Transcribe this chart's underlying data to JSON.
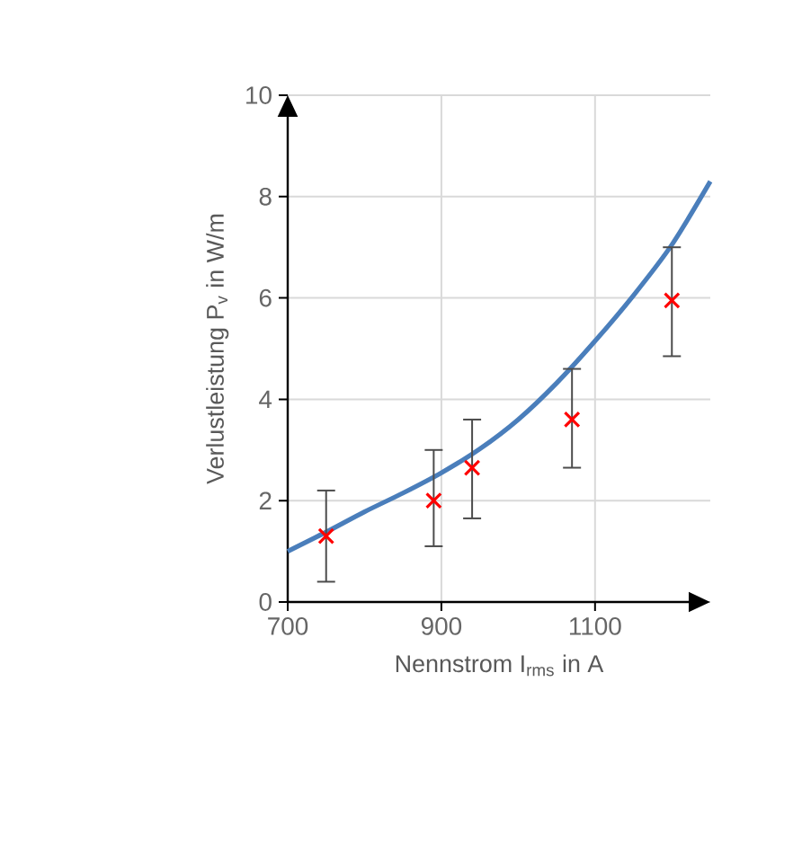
{
  "chart_data": {
    "type": "scatter",
    "xlabel": "Nennstrom I$_{rms}$ in A",
    "ylabel": "Verlustleistung P$_{v}$ in W/m",
    "xlim": [
      700,
      1250
    ],
    "ylim": [
      0,
      10
    ],
    "xticks": [
      700,
      900,
      1100
    ],
    "yticks": [
      0,
      2,
      4,
      6,
      8,
      10
    ],
    "grid": true,
    "series": [
      {
        "type": "line",
        "marker": "none",
        "color": "#4a7ebb",
        "x": [
          700,
          750,
          800,
          850,
          900,
          950,
          1000,
          1050,
          1100,
          1150,
          1200,
          1250
        ],
        "values": [
          1.0,
          1.38,
          1.78,
          2.15,
          2.55,
          3.02,
          3.6,
          4.32,
          5.15,
          6.05,
          7.05,
          8.3
        ]
      },
      {
        "marker": "cross",
        "color": "#ff0000",
        "x": [
          750,
          890,
          940,
          1070,
          1200
        ],
        "values": [
          1.3,
          2.0,
          2.65,
          3.6,
          5.95
        ],
        "errors": [
          [
            0.4,
            2.2
          ],
          [
            1.1,
            3.0
          ],
          [
            1.65,
            3.6
          ],
          [
            2.65,
            4.6
          ],
          [
            4.85,
            7.0
          ]
        ]
      }
    ]
  }
}
